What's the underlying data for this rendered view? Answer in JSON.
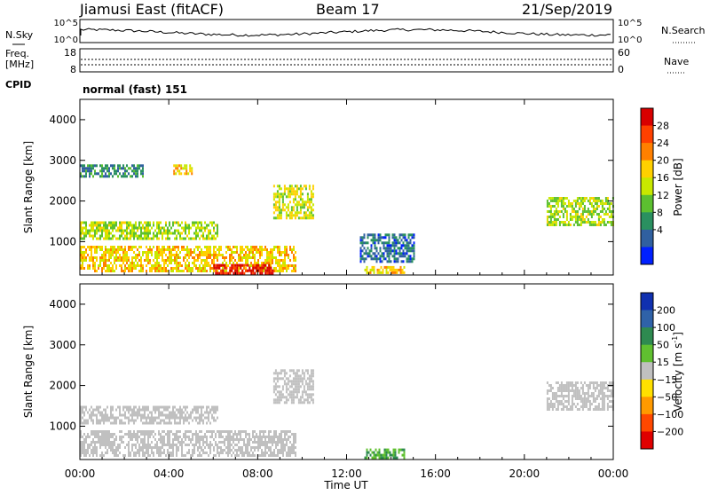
{
  "header": {
    "station": "Jiamusi East (fitACF)",
    "beam": "Beam 17",
    "date": "21/Sep/2019"
  },
  "status_panels": {
    "nsky": {
      "label": "N.Sky",
      "ticks": [
        "10^5",
        "10^0"
      ]
    },
    "nsearch": {
      "label": "N.Search",
      "ticks": [
        "10^5",
        "10^0"
      ]
    },
    "freq": {
      "label_line1": "Freq.",
      "label_line2": "[MHz]",
      "ticks": [
        "18",
        "8"
      ]
    },
    "nave": {
      "label": "Nave",
      "ticks": [
        "60",
        "0"
      ]
    },
    "cpid": {
      "label": "CPID",
      "mode": "normal (fast) 151"
    }
  },
  "power_colorbar": {
    "label": "Power [dB]",
    "ticks": [
      "28",
      "24",
      "20",
      "16",
      "12",
      "8",
      "4"
    ],
    "colors": [
      "#d80000",
      "#ff4000",
      "#ff8000",
      "#ffd000",
      "#c8e800",
      "#5cc030",
      "#2a9060",
      "#3060a0",
      "#0020ff"
    ]
  },
  "velocity_colorbar": {
    "label_main": "Velocity [m s",
    "label_sup": "-1",
    "label_end": "]",
    "ticks": [
      "200",
      "100",
      "50",
      "15",
      "−15",
      "−50",
      "−100",
      "−200"
    ],
    "colors": [
      "#1030b0",
      "#2f62a8",
      "#2e8a50",
      "#60c030",
      "#c0c0c0",
      "#ffe000",
      "#ff9a00",
      "#ff4800",
      "#e00000"
    ]
  },
  "chart_data": [
    {
      "type": "heatmap",
      "panel": "power",
      "ylabel": "Slant Range [km]",
      "xlim": [
        0,
        24
      ],
      "ylim": [
        180,
        4500
      ],
      "yticks": [
        1000,
        2000,
        3000,
        4000
      ],
      "ytick_labels": [
        "1000",
        "2000",
        "3000",
        "4000"
      ],
      "color_scale_db": [
        0,
        30
      ],
      "echo_regions": [
        {
          "t_start": 0.0,
          "t_end": 9.7,
          "range_start": 250,
          "range_end": 900,
          "power_db": 18
        },
        {
          "t_start": 6.0,
          "t_end": 8.7,
          "range_start": 250,
          "range_end": 450,
          "power_db": 29
        },
        {
          "t_start": 0.0,
          "t_end": 6.2,
          "range_start": 1100,
          "range_end": 1500,
          "power_db": 14
        },
        {
          "t_start": 0.0,
          "t_end": 2.8,
          "range_start": 2600,
          "range_end": 2900,
          "power_db": 8
        },
        {
          "t_start": 4.2,
          "t_end": 5.0,
          "range_start": 2700,
          "range_end": 2900,
          "power_db": 18
        },
        {
          "t_start": 8.7,
          "t_end": 10.5,
          "range_start": 1600,
          "range_end": 2400,
          "power_db": 16
        },
        {
          "t_start": 12.6,
          "t_end": 15.0,
          "range_start": 500,
          "range_end": 1200,
          "power_db": 6
        },
        {
          "t_start": 12.8,
          "t_end": 14.6,
          "range_start": 250,
          "range_end": 400,
          "power_db": 18
        },
        {
          "t_start": 21.0,
          "t_end": 24.0,
          "range_start": 1400,
          "range_end": 2100,
          "power_db": 14
        }
      ]
    },
    {
      "type": "heatmap",
      "panel": "velocity",
      "xlabel": "Time UT",
      "ylabel": "Slant Range [km]",
      "xlim": [
        0,
        24
      ],
      "ylim": [
        180,
        4500
      ],
      "x_tick_labels": [
        "00:00",
        "04:00",
        "08:00",
        "12:00",
        "16:00",
        "20:00",
        "00:00"
      ],
      "yticks": [
        1000,
        2000,
        3000,
        4000
      ],
      "ytick_labels": [
        "1000",
        "2000",
        "3000",
        "4000"
      ],
      "color_scale_ms": [
        -200,
        200
      ],
      "echo_regions": [
        {
          "t_start": 0.0,
          "t_end": 9.7,
          "range_start": 250,
          "range_end": 900,
          "velocity_ms": 0
        },
        {
          "t_start": 0.0,
          "t_end": 6.2,
          "range_start": 1100,
          "range_end": 1500,
          "velocity_ms": 0
        },
        {
          "t_start": 8.7,
          "t_end": 10.5,
          "range_start": 1600,
          "range_end": 2400,
          "velocity_ms": 0
        },
        {
          "t_start": 12.8,
          "t_end": 14.6,
          "range_start": 250,
          "range_end": 450,
          "velocity_ms": 30
        },
        {
          "t_start": 21.0,
          "t_end": 24.0,
          "range_start": 1400,
          "range_end": 2100,
          "velocity_ms": 0
        }
      ]
    }
  ]
}
